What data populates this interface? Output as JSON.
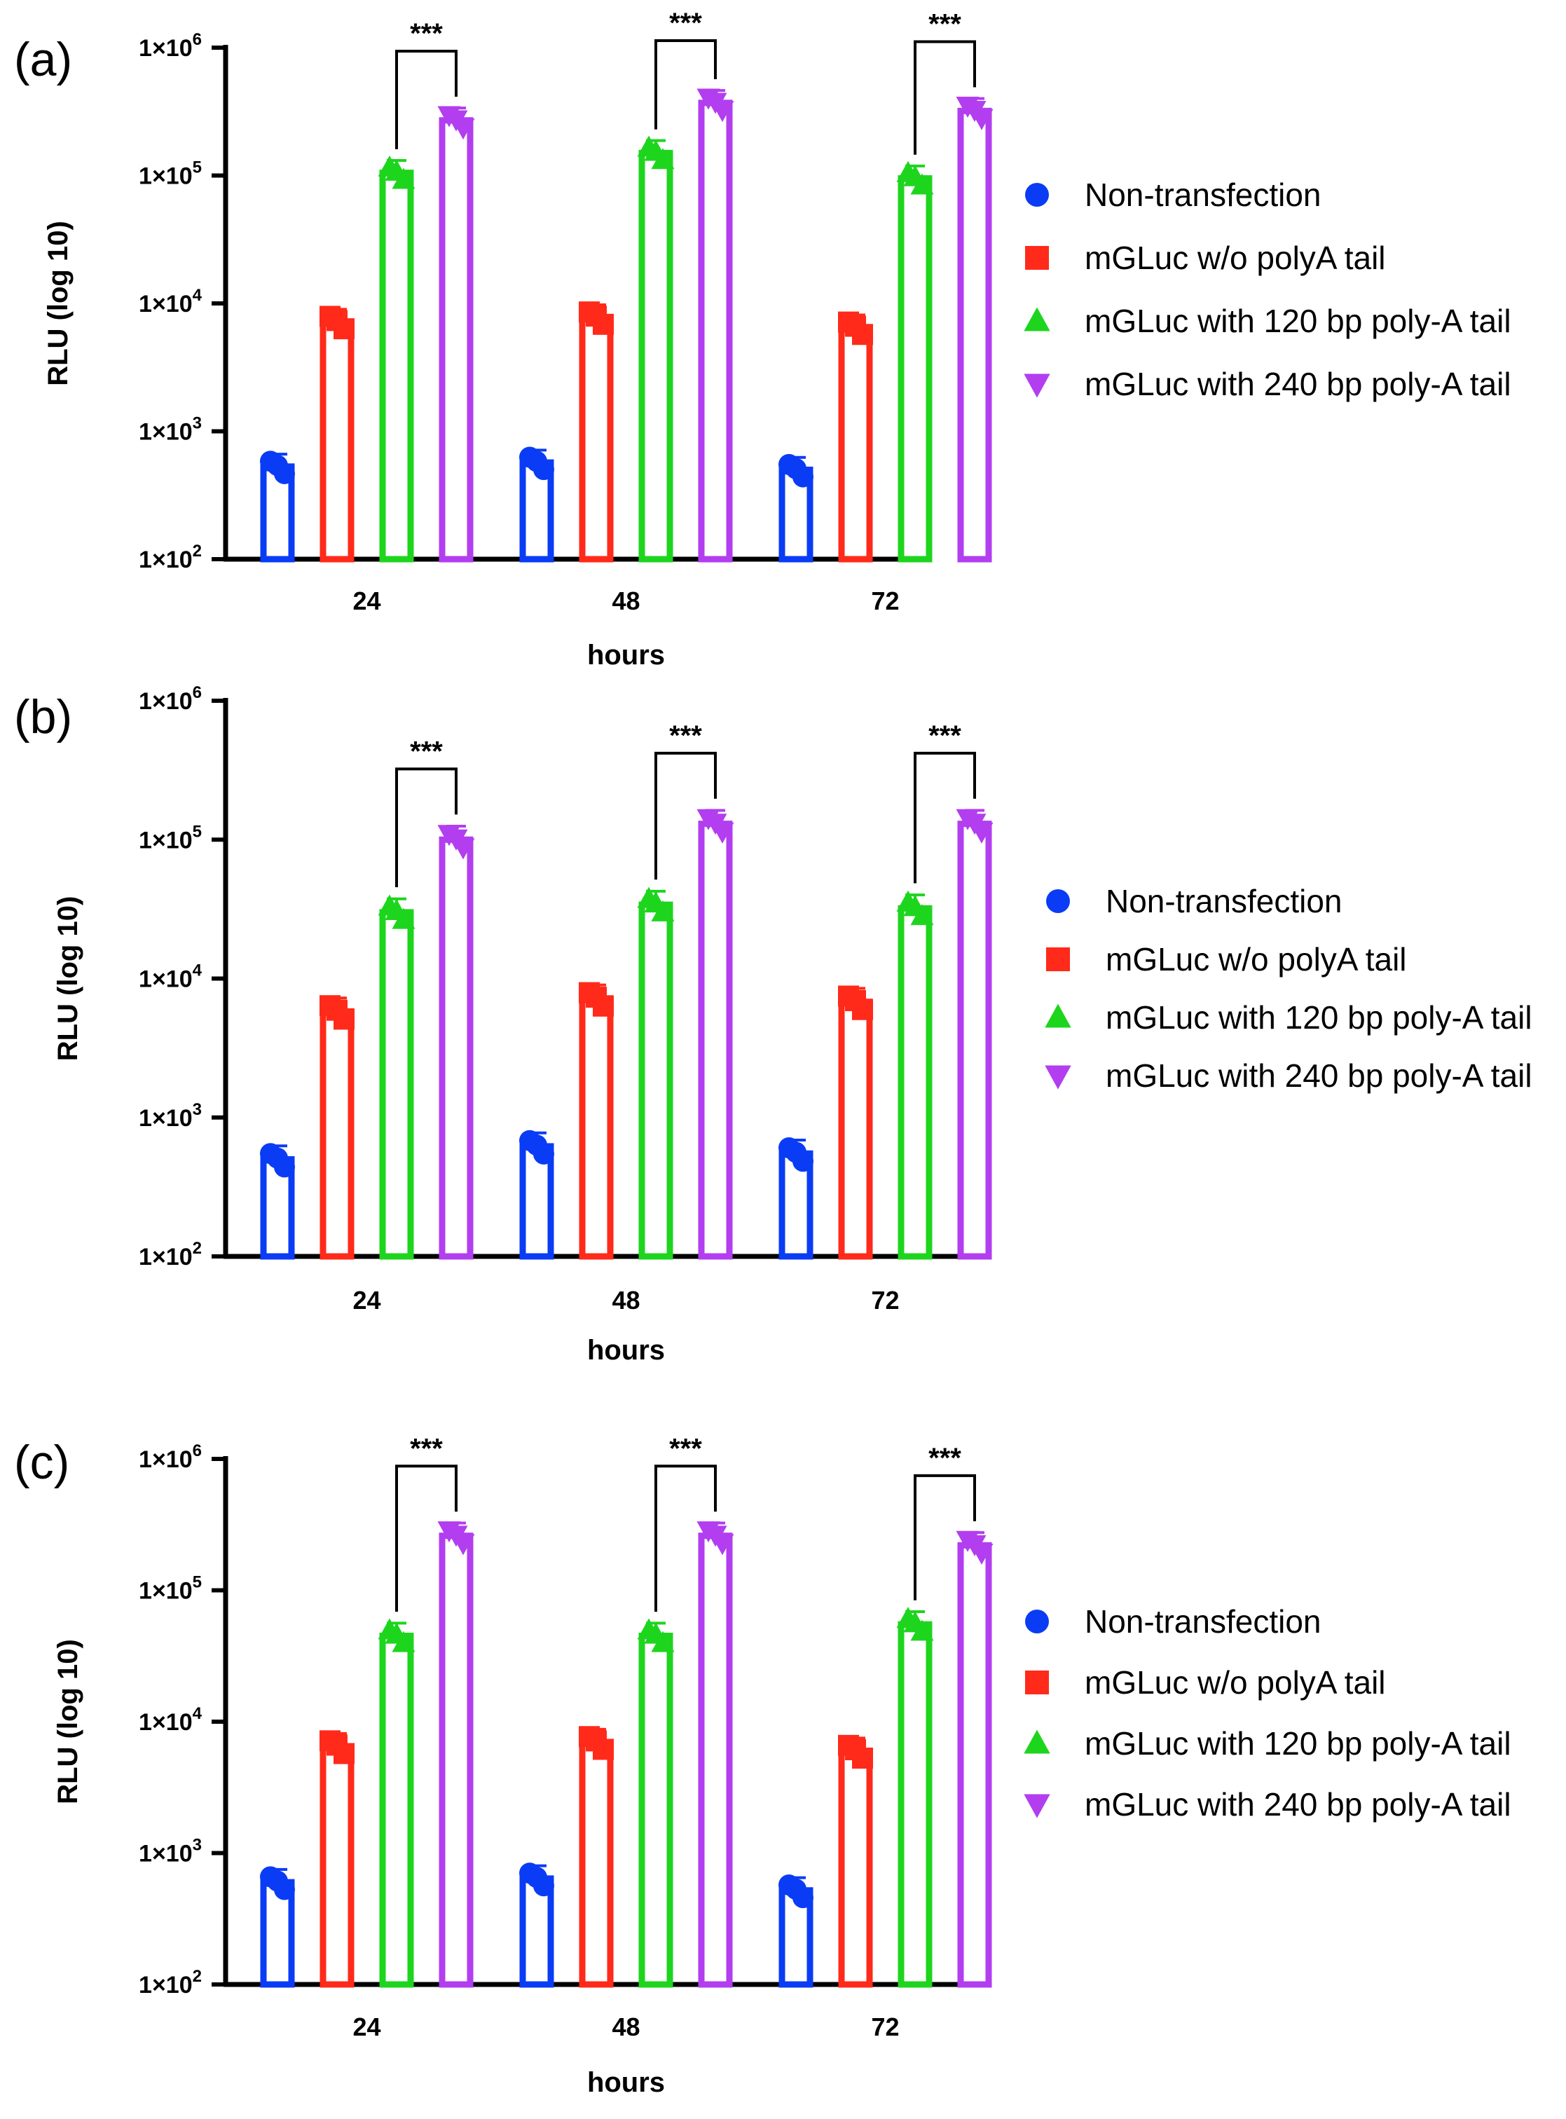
{
  "chart_data": [
    {
      "type": "bar",
      "panel_label": "(a)",
      "title": "",
      "xlabel": "hours",
      "ylabel": "RLU (log 10)",
      "yscale": "log",
      "ylim": [
        100,
        1000000
      ],
      "yticks": [
        {
          "value": 100,
          "base": "1×10",
          "exp": "2"
        },
        {
          "value": 1000,
          "base": "1×10",
          "exp": "3"
        },
        {
          "value": 10000,
          "base": "1×10",
          "exp": "4"
        },
        {
          "value": 100000,
          "base": "1×10",
          "exp": "5"
        },
        {
          "value": 1000000,
          "base": "1×10",
          "exp": "6"
        }
      ],
      "categories": [
        "24",
        "48",
        "72"
      ],
      "legend_position": "right",
      "series": [
        {
          "name": "Non-transfection",
          "color": "#0a3cf5",
          "marker": "circle",
          "values": [
            530,
            570,
            500
          ]
        },
        {
          "name": "mGLuc w/o polyA tail",
          "color": "#ff2a1a",
          "marker": "square",
          "values": [
            7200,
            7800,
            6500
          ]
        },
        {
          "name": "mGLuc with 120 bp poly-A tail",
          "color": "#1ed51e",
          "marker": "triangle-up",
          "values": [
            105000,
            150000,
            95000
          ]
        },
        {
          "name": "mGLuc with 240 bp poly-A tail",
          "color": "#b23ef0",
          "marker": "triangle-down",
          "values": [
            270000,
            370000,
            320000
          ]
        }
      ],
      "significance": [
        {
          "category": "24",
          "label": "***"
        },
        {
          "category": "48",
          "label": "***"
        },
        {
          "category": "72",
          "label": "***"
        }
      ]
    },
    {
      "type": "bar",
      "panel_label": "(b)",
      "title": "",
      "xlabel": "hours",
      "ylabel": "RLU (log 10)",
      "yscale": "log",
      "ylim": [
        100,
        1000000
      ],
      "yticks": [
        {
          "value": 100,
          "base": "1×10",
          "exp": "2"
        },
        {
          "value": 1000,
          "base": "1×10",
          "exp": "3"
        },
        {
          "value": 10000,
          "base": "1×10",
          "exp": "4"
        },
        {
          "value": 100000,
          "base": "1×10",
          "exp": "5"
        },
        {
          "value": 1000000,
          "base": "1×10",
          "exp": "6"
        }
      ],
      "categories": [
        "24",
        "48",
        "72"
      ],
      "legend_position": "right",
      "series": [
        {
          "name": "Non-transfection",
          "color": "#0a3cf5",
          "marker": "circle",
          "values": [
            500,
            620,
            550
          ]
        },
        {
          "name": "mGLuc w/o polyA tail",
          "color": "#ff2a1a",
          "marker": "square",
          "values": [
            5800,
            7200,
            6800
          ]
        },
        {
          "name": "mGLuc with 120 bp poly-A tail",
          "color": "#1ed51e",
          "marker": "triangle-up",
          "values": [
            30000,
            34000,
            32000
          ]
        },
        {
          "name": "mGLuc with 240 bp poly-A tail",
          "color": "#b23ef0",
          "marker": "triangle-down",
          "values": [
            100000,
            130000,
            130000
          ]
        }
      ],
      "significance": [
        {
          "category": "24",
          "label": "***"
        },
        {
          "category": "48",
          "label": "***"
        },
        {
          "category": "72",
          "label": "***"
        }
      ]
    },
    {
      "type": "bar",
      "panel_label": "(c)",
      "title": "",
      "xlabel": "hours",
      "ylabel": "RLU (log 10)",
      "yscale": "log",
      "ylim": [
        100,
        1000000
      ],
      "yticks": [
        {
          "value": 100,
          "base": "1×10",
          "exp": "2"
        },
        {
          "value": 1000,
          "base": "1×10",
          "exp": "3"
        },
        {
          "value": 10000,
          "base": "1×10",
          "exp": "4"
        },
        {
          "value": 100000,
          "base": "1×10",
          "exp": "5"
        },
        {
          "value": 1000000,
          "base": "1×10",
          "exp": "6"
        }
      ],
      "categories": [
        "24",
        "48",
        "72"
      ],
      "legend_position": "right",
      "series": [
        {
          "name": "Non-transfection",
          "color": "#0a3cf5",
          "marker": "circle",
          "values": [
            600,
            640,
            520
          ]
        },
        {
          "name": "mGLuc w/o polyA tail",
          "color": "#ff2a1a",
          "marker": "square",
          "values": [
            6500,
            7000,
            6000
          ]
        },
        {
          "name": "mGLuc with 120 bp poly-A tail",
          "color": "#1ed51e",
          "marker": "triangle-up",
          "values": [
            45000,
            45000,
            55000
          ]
        },
        {
          "name": "mGLuc with 240 bp poly-A tail",
          "color": "#b23ef0",
          "marker": "triangle-down",
          "values": [
            260000,
            260000,
            220000
          ]
        }
      ],
      "significance": [
        {
          "category": "24",
          "label": "***"
        },
        {
          "category": "48",
          "label": "***"
        },
        {
          "category": "72",
          "label": "***"
        }
      ]
    }
  ]
}
